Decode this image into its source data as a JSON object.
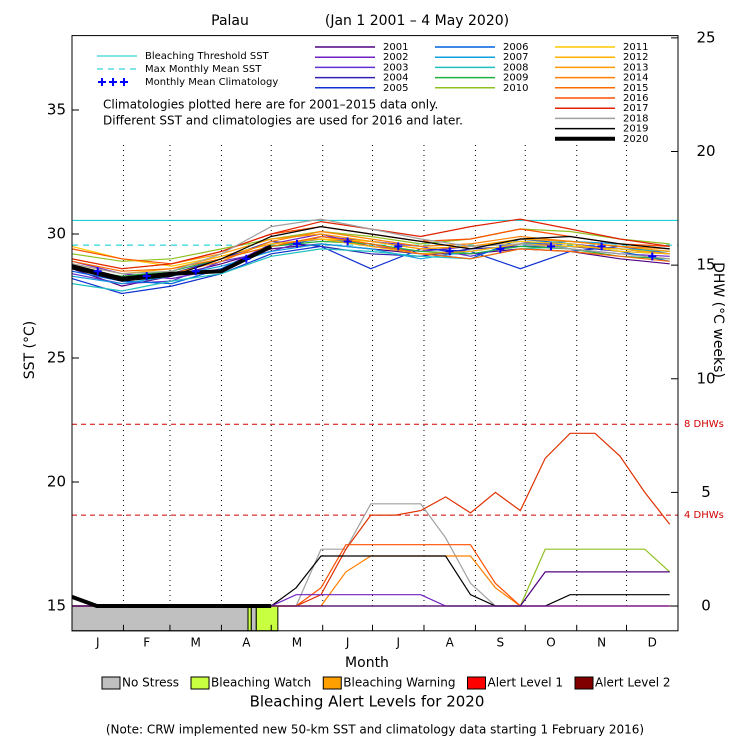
{
  "chart_data": {
    "type": "line",
    "title": "Palau",
    "subtitle": "(Jan 1 2001 – 4 May 2020)",
    "xlabel": "Month",
    "ylabel": "SST (°C)",
    "y2label": "DHW (°C weeks)",
    "annotations": [
      "Climatologies plotted here are for 2001–2015 data only.",
      "Different SST and climatologies are used for 2016 and later."
    ],
    "note": "(Note: CRW implemented new 50-km SST and climatology data starting 1 February 2016)",
    "xlim": [
      0,
      365
    ],
    "ylim": [
      14,
      38
    ],
    "yticks": [
      15,
      20,
      25,
      30,
      35
    ],
    "y2lim": [
      -1.09,
      25.1
    ],
    "y2ticks": [
      0,
      5,
      10,
      15,
      20,
      25
    ],
    "xticks": [
      {
        "value": 15.5,
        "label": "J"
      },
      {
        "value": 45,
        "label": "F"
      },
      {
        "value": 74.5,
        "label": "M"
      },
      {
        "value": 105,
        "label": "A"
      },
      {
        "value": 135.5,
        "label": "M"
      },
      {
        "value": 166,
        "label": "J"
      },
      {
        "value": 196.5,
        "label": "J"
      },
      {
        "value": 227.5,
        "label": "A"
      },
      {
        "value": 258,
        "label": "S"
      },
      {
        "value": 288.5,
        "label": "O"
      },
      {
        "value": 319,
        "label": "N"
      },
      {
        "value": 349.5,
        "label": "D"
      }
    ],
    "month_lines": [
      31,
      59,
      90,
      120,
      151,
      181,
      212,
      243,
      273,
      304,
      334
    ],
    "threshold": {
      "label": "Bleaching Threshold SST",
      "value": 30.55,
      "color": "#00c8d0"
    },
    "mmm": {
      "label": "Max Monthly Mean SST",
      "value": 29.55,
      "color": "#00c8d0"
    },
    "climatology": {
      "label": "Monthly Mean Climatology",
      "color": "#0000ff",
      "x": [
        15.5,
        45,
        74.5,
        105,
        135.5,
        166,
        196.5,
        227.5,
        258,
        288.5,
        319,
        349.5
      ],
      "values": [
        28.5,
        28.3,
        28.5,
        29.0,
        29.6,
        29.7,
        29.5,
        29.3,
        29.4,
        29.5,
        29.5,
        29.1
      ]
    },
    "x": [
      0,
      30,
      60,
      90,
      120,
      150,
      180,
      210,
      240,
      270,
      300,
      330,
      360
    ],
    "series": [
      {
        "name": "2001",
        "color": "#500080",
        "values": [
          28.6,
          27.9,
          28.3,
          28.8,
          29.4,
          29.6,
          29.4,
          29.2,
          29.2,
          29.4,
          29.3,
          29.0,
          28.8
        ]
      },
      {
        "name": "2002",
        "color": "#7020c0",
        "values": [
          28.9,
          28.4,
          28.2,
          28.6,
          29.6,
          30.0,
          29.5,
          29.3,
          29.5,
          29.7,
          29.4,
          29.2,
          29.1
        ]
      },
      {
        "name": "2003",
        "color": "#6030d0",
        "values": [
          28.4,
          28.0,
          28.1,
          28.9,
          29.3,
          29.9,
          29.7,
          29.5,
          29.1,
          29.6,
          29.6,
          29.4,
          29.2
        ]
      },
      {
        "name": "2004",
        "color": "#3020b0",
        "values": [
          28.7,
          28.2,
          28.4,
          29.0,
          29.7,
          29.5,
          29.2,
          29.1,
          29.4,
          29.5,
          29.5,
          29.3,
          29.2
        ]
      },
      {
        "name": "2005",
        "color": "#1030d0",
        "values": [
          28.2,
          27.6,
          27.9,
          28.4,
          29.2,
          29.5,
          28.6,
          29.4,
          29.3,
          28.6,
          29.3,
          29.5,
          29.2
        ]
      },
      {
        "name": "2006",
        "color": "#0060e0",
        "values": [
          28.5,
          28.1,
          28.0,
          28.6,
          29.5,
          29.8,
          29.6,
          29.2,
          29.0,
          29.8,
          29.6,
          29.3,
          28.9
        ]
      },
      {
        "name": "2007",
        "color": "#10a0e0",
        "values": [
          28.3,
          28.0,
          28.3,
          28.7,
          29.3,
          29.6,
          29.4,
          29.0,
          29.3,
          29.6,
          29.7,
          29.6,
          29.4
        ]
      },
      {
        "name": "2008",
        "color": "#20c0c0",
        "values": [
          28.0,
          27.7,
          28.1,
          28.4,
          29.1,
          29.4,
          29.3,
          29.1,
          29.0,
          29.4,
          29.5,
          29.4,
          29.3
        ]
      },
      {
        "name": "2009",
        "color": "#20b040",
        "values": [
          28.6,
          28.3,
          28.5,
          29.0,
          29.5,
          29.7,
          29.6,
          29.3,
          29.2,
          29.5,
          29.4,
          29.1,
          29.0
        ]
      },
      {
        "name": "2010",
        "color": "#90c020",
        "values": [
          29.2,
          28.9,
          29.0,
          29.4,
          29.8,
          30.1,
          29.9,
          29.6,
          29.8,
          30.2,
          30.1,
          29.8,
          29.6
        ]
      },
      {
        "name": "2011",
        "color": "#ffc800",
        "values": [
          29.5,
          29.0,
          28.7,
          29.1,
          29.6,
          29.8,
          29.7,
          29.4,
          29.5,
          29.7,
          29.6,
          29.3,
          29.2
        ]
      },
      {
        "name": "2012",
        "color": "#ffb000",
        "values": [
          28.8,
          28.4,
          28.6,
          29.1,
          29.6,
          29.8,
          29.5,
          29.2,
          29.3,
          29.6,
          29.5,
          29.4,
          29.2
        ]
      },
      {
        "name": "2013",
        "color": "#ff9a00",
        "values": [
          29.0,
          28.6,
          28.8,
          29.2,
          29.8,
          30.0,
          29.7,
          29.4,
          29.5,
          29.8,
          29.7,
          29.5,
          29.3
        ]
      },
      {
        "name": "2014",
        "color": "#ff8000",
        "values": [
          28.7,
          28.2,
          28.4,
          28.9,
          29.7,
          30.1,
          29.8,
          29.5,
          29.6,
          29.9,
          29.7,
          29.5,
          29.4
        ]
      },
      {
        "name": "2015",
        "color": "#ff6a00",
        "values": [
          28.9,
          28.5,
          28.6,
          29.0,
          29.5,
          29.9,
          29.6,
          29.2,
          29.0,
          29.4,
          29.3,
          29.1,
          28.9
        ]
      },
      {
        "name": "2016",
        "color": "#ff5000",
        "values": [
          29.4,
          29.0,
          28.8,
          29.3,
          30.0,
          30.3,
          30.0,
          29.7,
          29.8,
          30.2,
          29.9,
          29.6,
          29.5
        ]
      },
      {
        "name": "2017",
        "color": "#e02000",
        "values": [
          29.0,
          28.6,
          28.8,
          29.3,
          30.0,
          30.5,
          30.2,
          29.9,
          30.3,
          30.6,
          30.2,
          29.8,
          29.5
        ]
      },
      {
        "name": "2018",
        "color": "#a0a0a0",
        "values": [
          28.8,
          28.4,
          28.5,
          29.2,
          30.3,
          30.6,
          30.2,
          29.8,
          29.5,
          29.6,
          29.4,
          29.2,
          29.0
        ]
      },
      {
        "name": "2019",
        "color": "#000000",
        "values": [
          28.6,
          28.1,
          28.3,
          29.0,
          29.9,
          30.3,
          30.0,
          29.7,
          29.4,
          29.8,
          29.9,
          29.6,
          29.4
        ]
      },
      {
        "name": "2020",
        "color": "#000000",
        "width": 4,
        "values": [
          28.7,
          28.2,
          28.4,
          28.5,
          29.5,
          null,
          null,
          null,
          null,
          null,
          null,
          null,
          null
        ]
      }
    ],
    "dhw_x": [
      0,
      15,
      30,
      45,
      60,
      75,
      90,
      105,
      120,
      135,
      150,
      165,
      180,
      195,
      210,
      225,
      240,
      255,
      270,
      285,
      300,
      315,
      330,
      345,
      360
    ],
    "dhw_series": [
      {
        "color": "#a0a0a0",
        "values": [
          0,
          0,
          0,
          0,
          0,
          0,
          0,
          0,
          0,
          0,
          2.5,
          2.5,
          4.5,
          4.5,
          4.5,
          3,
          1,
          0,
          0,
          0,
          0,
          0,
          0,
          0,
          0
        ]
      },
      {
        "color": "#e03000",
        "values": [
          0,
          0,
          0,
          0,
          0,
          0,
          0,
          0,
          0,
          0,
          0.5,
          2.5,
          4.0,
          4.0,
          4.2,
          4.8,
          4.1,
          5.0,
          4.2,
          6.5,
          7.6,
          7.6,
          6.6,
          5.0,
          3.6
        ]
      },
      {
        "color": "#ff8000",
        "values": [
          0,
          0,
          0,
          0,
          0,
          0,
          0,
          0,
          0,
          0,
          0,
          1.5,
          2.2,
          2.2,
          2.2,
          2.2,
          2.2,
          0.8,
          0,
          0,
          0,
          0,
          0,
          0,
          0
        ]
      },
      {
        "color": "#ff5000",
        "values": [
          0,
          0,
          0,
          0,
          0,
          0,
          0,
          0,
          0,
          0,
          0.8,
          2.7,
          2.7,
          2.7,
          2.7,
          2.7,
          2.7,
          1.0,
          0,
          0,
          0,
          0,
          0,
          0,
          0
        ]
      },
      {
        "color": "#000000",
        "values": [
          0,
          0,
          0,
          0,
          0,
          0,
          0,
          0,
          0,
          0.8,
          2.2,
          2.2,
          2.2,
          2.2,
          2.2,
          2.2,
          0.5,
          0,
          0,
          0,
          0.5,
          0.5,
          0.5,
          0.5,
          0.5
        ]
      },
      {
        "color": "#7020c0",
        "values": [
          0,
          0,
          0,
          0,
          0,
          0,
          0,
          0,
          0,
          0.5,
          0.5,
          0.5,
          0.5,
          0.5,
          0.5,
          0,
          0,
          0,
          0,
          0,
          0,
          0,
          0,
          0,
          0
        ]
      },
      {
        "color": "#90c020",
        "values": [
          0,
          0,
          0,
          0,
          0,
          0,
          0,
          0,
          0,
          0,
          0,
          0,
          0,
          0,
          0,
          0,
          0,
          0,
          0,
          2.5,
          2.5,
          2.5,
          2.5,
          2.5,
          1.5
        ]
      },
      {
        "color": "#500080",
        "values": [
          0,
          0,
          0,
          0,
          0,
          0,
          0,
          0,
          0,
          0,
          0,
          0,
          0,
          0,
          0,
          0,
          0,
          0,
          0,
          1.5,
          1.5,
          1.5,
          1.5,
          1.5,
          1.5
        ]
      },
      {
        "color": "#000000",
        "width": 4,
        "values": [
          0.4,
          0,
          0,
          0,
          0,
          0,
          0,
          0,
          0,
          null,
          null,
          null,
          null,
          null,
          null,
          null,
          null,
          null,
          null,
          null,
          null,
          null,
          null,
          null,
          null
        ]
      }
    ],
    "dhw_thresholds": [
      {
        "value": 8,
        "label": "8 DHWs"
      },
      {
        "value": 4,
        "label": "4 DHWs"
      }
    ],
    "dhw_threshold_color": "#d00000",
    "alert_title": "Bleaching Alert Levels for 2020",
    "alert_levels": [
      {
        "name": "No Stress",
        "color": "#c0c0c0"
      },
      {
        "name": "Bleaching Watch",
        "color": "#c8ff40"
      },
      {
        "name": "Bleaching Warning",
        "color": "#ffa000"
      },
      {
        "name": "Alert Level 1",
        "color": "#ff0000"
      },
      {
        "name": "Alert Level 2",
        "color": "#800000"
      }
    ],
    "alert_segments": [
      {
        "start": 0,
        "end": 106,
        "level": 0
      },
      {
        "start": 106,
        "end": 108,
        "level": 1
      },
      {
        "start": 108,
        "end": 111,
        "level": 0
      },
      {
        "start": 111,
        "end": 124,
        "level": 1
      }
    ]
  }
}
